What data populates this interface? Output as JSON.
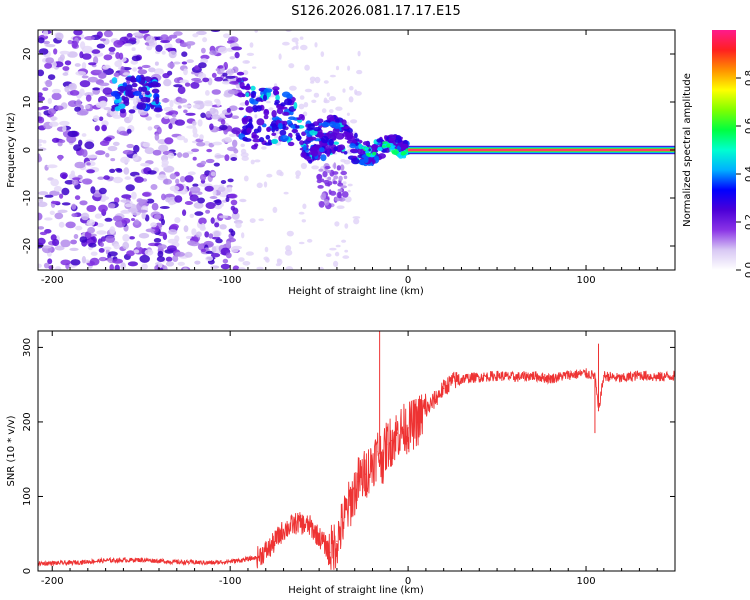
{
  "figure_title": "S126.2026.081.17.17.E15",
  "chart_data": [
    {
      "type": "heatmap",
      "name": "spectrogram",
      "xlabel": "Height of straight line (km)",
      "ylabel": "Frequency (Hz)",
      "xlim": [
        -208,
        150
      ],
      "ylim": [
        -25,
        25
      ],
      "xticks": [
        -200,
        -100,
        0,
        100
      ],
      "xtick_labels": [
        "-200",
        "-100",
        "0",
        "100"
      ],
      "yticks": [
        -20,
        -10,
        0,
        10,
        20
      ],
      "ytick_labels": [
        "-20",
        "-10",
        "0",
        "10",
        "20"
      ],
      "features": [
        {
          "label": "scattered noise",
          "x_range": [
            -208,
            -95
          ],
          "y_range": [
            -25,
            25
          ]
        },
        {
          "label": "low-frequency energy cluster",
          "x_range": [
            -165,
            -140
          ],
          "y_range": [
            8,
            15
          ]
        },
        {
          "label": "converging band",
          "x_range": [
            -95,
            0
          ],
          "y_range": [
            -6,
            12
          ]
        },
        {
          "label": "steady signal line",
          "x_range": [
            0,
            150
          ],
          "y_center": 0,
          "amplitude": 0.95
        }
      ],
      "colorbar": {
        "label": "Normalized spectral amplitude",
        "range": [
          0.0,
          1.0
        ],
        "ticks": [
          0.0,
          0.2,
          0.4,
          0.6,
          0.8
        ],
        "tick_labels": [
          "0.0",
          "0.2",
          "0.4",
          "0.6",
          "0.8"
        ],
        "colors": [
          "#ffffff",
          "#d8c8f4",
          "#8a34e6",
          "#4c00d8",
          "#0000ff",
          "#00b0ff",
          "#00ffd0",
          "#00ff40",
          "#80ff00",
          "#ffff00",
          "#ff9000",
          "#ff2020",
          "#ff1a8c"
        ]
      }
    },
    {
      "type": "line",
      "name": "snr",
      "xlabel": "Height of straight line (km)",
      "ylabel": "SNR (10 * v/v)",
      "xlim": [
        -208,
        150
      ],
      "ylim": [
        0,
        322
      ],
      "xticks": [
        -200,
        -100,
        0,
        100
      ],
      "xtick_labels": [
        "-200",
        "-100",
        "0",
        "100"
      ],
      "yticks": [
        0,
        100,
        200,
        300
      ],
      "ytick_labels": [
        "0",
        "100",
        "200",
        "300"
      ],
      "color": "#ee3333",
      "series": [
        {
          "name": "SNR",
          "x": [
            -208,
            -190,
            -170,
            -150,
            -130,
            -110,
            -95,
            -85,
            -78,
            -70,
            -62,
            -55,
            -48,
            -44,
            -40,
            -36,
            -32,
            -28,
            -24,
            -20,
            -17,
            -14,
            -12,
            -9,
            -6,
            -3,
            0,
            5,
            10,
            15,
            20,
            25,
            30,
            40,
            50,
            60,
            70,
            80,
            90,
            100,
            105,
            107,
            110,
            120,
            130,
            140,
            150
          ],
          "y": [
            10,
            11,
            14,
            15,
            12,
            11,
            14,
            18,
            30,
            55,
            65,
            60,
            40,
            25,
            40,
            70,
            95,
            120,
            130,
            145,
            160,
            150,
            170,
            175,
            185,
            190,
            192,
            200,
            215,
            230,
            245,
            255,
            258,
            260,
            262,
            260,
            262,
            258,
            263,
            265,
            262,
            215,
            262,
            258,
            263,
            260,
            262
          ]
        }
      ],
      "spikes": [
        {
          "x": -16,
          "y": 322
        },
        {
          "x": -14,
          "y": 160
        },
        {
          "x": 105,
          "y": 185
        },
        {
          "x": 107,
          "y": 305
        }
      ]
    }
  ]
}
